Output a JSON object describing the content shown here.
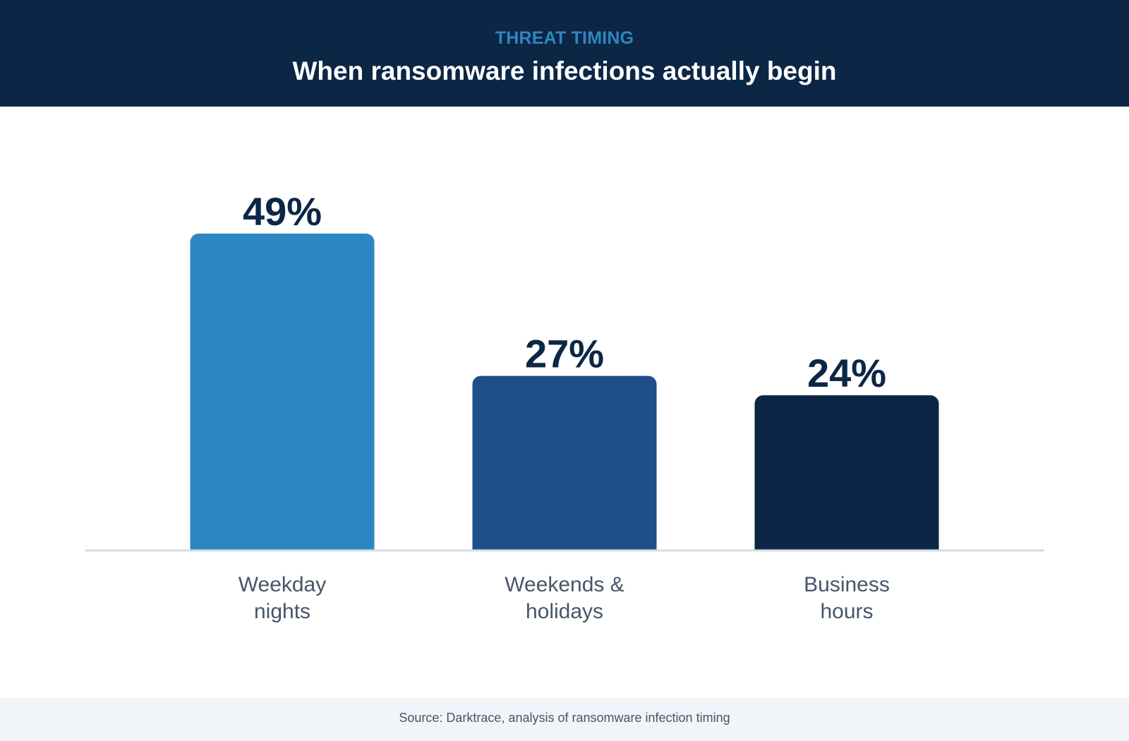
{
  "header": {
    "eyebrow": "THREAT TIMING",
    "title": "When ransomware infections actually begin"
  },
  "chart_data": {
    "type": "bar",
    "categories": [
      [
        "Weekday",
        "nights"
      ],
      [
        "Weekends &",
        "holidays"
      ],
      [
        "Business",
        "hours"
      ]
    ],
    "values": [
      49,
      27,
      24
    ],
    "value_labels": [
      "49%",
      "27%",
      "24%"
    ],
    "colors": [
      "#2e86c1",
      "#1f4e89",
      "#0c2646"
    ],
    "ylim": [
      0,
      49
    ],
    "grid": false,
    "legend": "none",
    "title": "When ransomware infections actually begin",
    "xlabel": "",
    "ylabel": ""
  },
  "footer": {
    "source": "Source: Darktrace, analysis of ransomware infection timing"
  },
  "theme": {
    "header_bg": "#0c2646",
    "accent": "#2e86c1",
    "value_color": "#0c2646",
    "category_color": "#475569",
    "baseline_color": "#d5dde6",
    "footer_bg": "#f1f5f9"
  }
}
